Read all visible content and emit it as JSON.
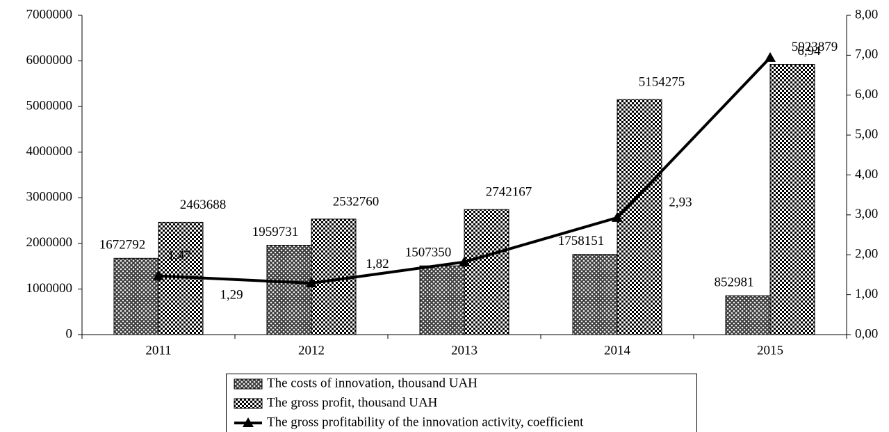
{
  "chart_data": {
    "type": "bar_line",
    "categories": [
      "2011",
      "2012",
      "2013",
      "2014",
      "2015"
    ],
    "series": [
      {
        "name": "The costs of innovation, thousand UAH",
        "color": "#3a3a3a",
        "type": "bar",
        "values": [
          1672792,
          1959731,
          1507350,
          1758151,
          852981
        ]
      },
      {
        "name": "The gross profit, thousand UAH",
        "color": "#000000",
        "type": "bar",
        "values": [
          2463688,
          2532760,
          2742167,
          5154275,
          5923879
        ]
      },
      {
        "name": "The gross profitability of the innovation activity, coefficient",
        "color": "#000000",
        "type": "line",
        "axis": "y2",
        "values": [
          1.47,
          1.29,
          1.82,
          2.93,
          6.94
        ],
        "value_labels": [
          "1,47",
          "1,29",
          "1,82",
          "2,93",
          "6,94"
        ]
      }
    ],
    "ylim": [
      0,
      7000000
    ],
    "yticks": [
      0,
      1000000,
      2000000,
      3000000,
      4000000,
      5000000,
      6000000,
      7000000
    ],
    "y2lim": [
      0,
      8
    ],
    "y2ticks": [
      {
        "value": 0,
        "label": "0,00"
      },
      {
        "value": 1,
        "label": "1,00"
      },
      {
        "value": 2,
        "label": "2,00"
      },
      {
        "value": 3,
        "label": "3,00"
      },
      {
        "value": 4,
        "label": "4,00"
      },
      {
        "value": 5,
        "label": "5,00"
      },
      {
        "value": 6,
        "label": "6,00"
      },
      {
        "value": 7,
        "label": "7,00"
      },
      {
        "value": 8,
        "label": "8,00"
      }
    ],
    "legend": "bottom"
  }
}
